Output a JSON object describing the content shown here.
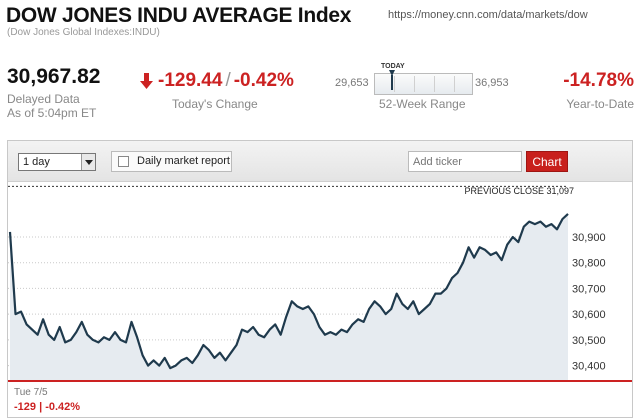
{
  "header": {
    "title": "DOW JONES INDU AVERAGE Index",
    "subtitle": "(Dow Jones Global Indexes:INDU)",
    "url": "https://money.cnn.com/data/markets/dow"
  },
  "quote": {
    "last_price": "30,967.82",
    "delayed_line1": "Delayed Data",
    "delayed_line2": "As of 5:04pm ET",
    "change_points": "-129.44",
    "change_separator": "/",
    "change_percent": "-0.42%",
    "change_label": "Today's Change",
    "direction_icon": "down-arrow-icon",
    "ytd_value": "-14.78%",
    "ytd_label": "Year-to-Date",
    "negative_color": "#cc2222"
  },
  "week52": {
    "today_label": "TODAY",
    "low": "29,653",
    "high": "36,953",
    "label": "52-Week Range",
    "today_position_fraction": 0.18
  },
  "toolbar": {
    "period_value": "1 day",
    "report_label": "Daily market report",
    "ticker_placeholder": "Add ticker",
    "chart_button_label": "Chart"
  },
  "chart_data": {
    "type": "area",
    "prev_close_label": "PREVIOUS CLOSE 31,097",
    "prev_close": 31097,
    "y_ticks": [
      "30,900",
      "30,800",
      "30,700",
      "30,600",
      "30,500",
      "30,400"
    ],
    "y_tick_values": [
      30900,
      30800,
      30700,
      30600,
      30500,
      30400
    ],
    "ylim": [
      30340,
      31110
    ],
    "grid": true,
    "line_color": "#1f3a4d",
    "fill_color": "#e6ebf0",
    "baseline_color": "#cc2222",
    "values": [
      30920,
      30600,
      30610,
      30560,
      30540,
      30520,
      30580,
      30520,
      30500,
      30550,
      30490,
      30500,
      30530,
      30570,
      30520,
      30500,
      30490,
      30510,
      30500,
      30530,
      30500,
      30490,
      30570,
      30510,
      30440,
      30400,
      30420,
      30400,
      30430,
      30390,
      30400,
      30420,
      30430,
      30410,
      30440,
      30480,
      30460,
      30430,
      30450,
      30420,
      30450,
      30480,
      30540,
      30530,
      30550,
      30520,
      30510,
      30540,
      30560,
      30520,
      30590,
      30650,
      30630,
      30620,
      30630,
      30600,
      30550,
      30520,
      30530,
      30520,
      30540,
      30530,
      30560,
      30580,
      30570,
      30620,
      30650,
      30630,
      30600,
      30620,
      30680,
      30640,
      30620,
      30650,
      30600,
      30620,
      30640,
      30680,
      30680,
      30700,
      30740,
      30760,
      30800,
      30860,
      30820,
      30860,
      30850,
      30830,
      30840,
      30810,
      30870,
      30900,
      30880,
      30940,
      30960,
      30950,
      30960,
      30940,
      30950,
      30930,
      30970,
      30990
    ]
  },
  "footer": {
    "date_label": "Tue 7/5",
    "day_change": "-129 | -0.42%"
  }
}
